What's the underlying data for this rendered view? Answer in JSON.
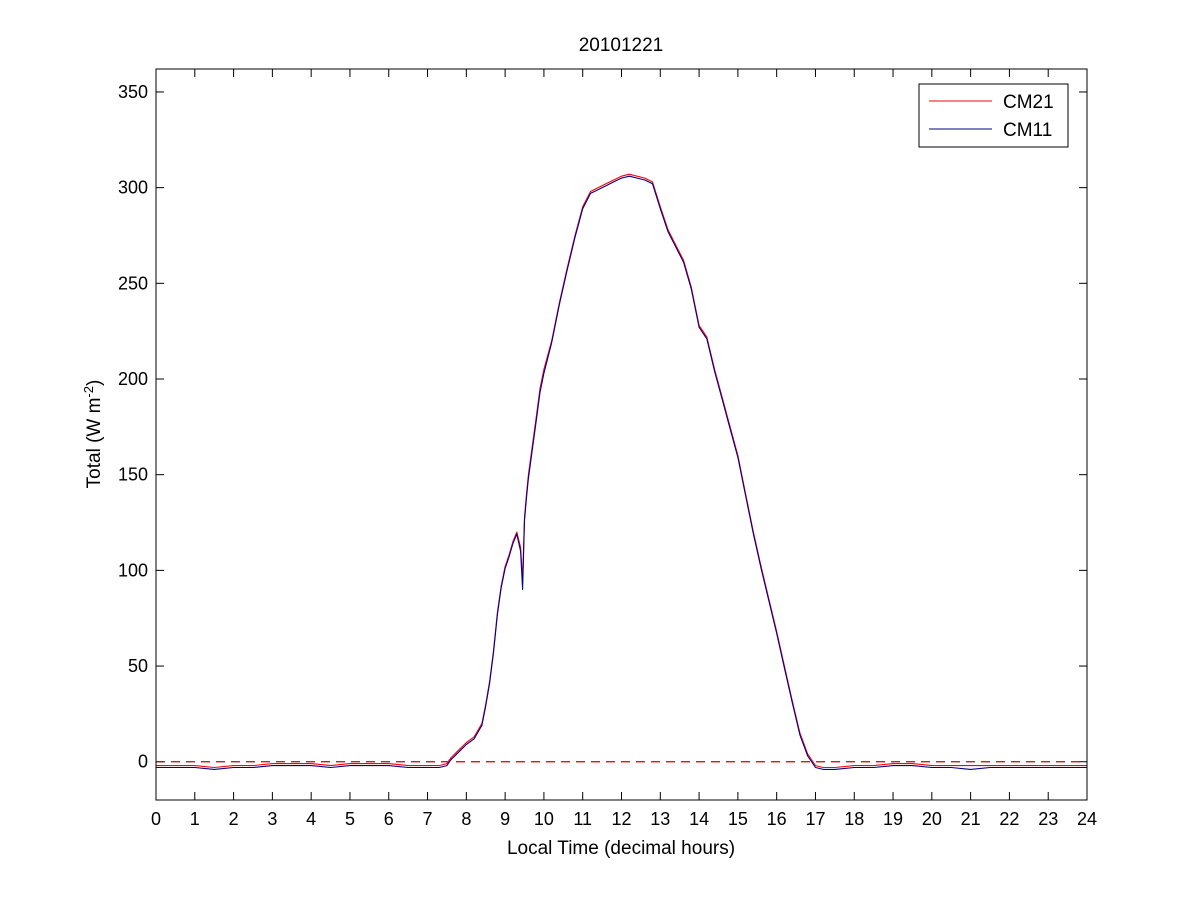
{
  "chart_data": {
    "type": "line",
    "title": "20101221",
    "xlabel": "Local Time (decimal hours)",
    "ylabel": {
      "base": "Total (W m",
      "sup": "-2",
      "close": ")"
    },
    "xlim": [
      0,
      24
    ],
    "ylim": [
      -20,
      362
    ],
    "xticks": [
      0,
      1,
      2,
      3,
      4,
      5,
      6,
      7,
      8,
      9,
      10,
      11,
      12,
      13,
      14,
      15,
      16,
      17,
      18,
      19,
      20,
      21,
      22,
      23,
      24
    ],
    "yticks": [
      0,
      50,
      100,
      150,
      200,
      250,
      300,
      350
    ],
    "grid": false,
    "legend_position": "top-right",
    "reference_line": {
      "y": 0,
      "style": "dashed",
      "color": "#cc0000"
    },
    "series": [
      {
        "name": "CM21",
        "color": "#ff0000",
        "x": [
          0,
          0.5,
          1,
          1.5,
          2,
          2.5,
          3,
          3.5,
          4,
          4.5,
          5,
          5.5,
          6,
          6.5,
          7,
          7.3,
          7.5,
          7.6,
          7.8,
          8,
          8.2,
          8.4,
          8.5,
          8.6,
          8.7,
          8.8,
          8.9,
          9,
          9.1,
          9.2,
          9.3,
          9.4,
          9.45,
          9.5,
          9.55,
          9.6,
          9.7,
          9.8,
          9.9,
          10,
          10.2,
          10.4,
          10.6,
          10.8,
          11,
          11.2,
          11.4,
          11.6,
          11.8,
          12,
          12.2,
          12.4,
          12.6,
          12.8,
          13,
          13.2,
          13.4,
          13.6,
          13.8,
          14,
          14.2,
          14.4,
          14.6,
          14.8,
          15,
          15.2,
          15.4,
          15.6,
          15.8,
          16,
          16.2,
          16.4,
          16.6,
          16.8,
          17,
          17.2,
          17.5,
          18,
          18.5,
          19,
          19.5,
          20,
          20.5,
          21,
          21.5,
          22,
          22.5,
          23,
          23.5,
          24
        ],
        "values": [
          -2,
          -2,
          -2,
          -3,
          -2,
          -2,
          -1,
          -1,
          -1,
          -2,
          -1,
          -1,
          -1,
          -2,
          -2,
          -2,
          -1,
          2,
          6,
          10,
          13,
          20,
          30,
          42,
          58,
          78,
          92,
          102,
          108,
          115,
          120,
          112,
          95,
          128,
          140,
          150,
          165,
          180,
          195,
          205,
          220,
          240,
          258,
          275,
          290,
          298,
          300,
          302,
          304,
          306,
          307,
          306,
          305,
          303,
          290,
          278,
          270,
          262,
          248,
          228,
          222,
          205,
          190,
          175,
          160,
          140,
          120,
          102,
          85,
          68,
          50,
          32,
          15,
          4,
          -2,
          -3,
          -3,
          -2,
          -2,
          -1,
          -1,
          -2,
          -2,
          -2,
          -2,
          -2,
          -2,
          -2,
          -2,
          -2
        ]
      },
      {
        "name": "CM11",
        "color": "#00008b",
        "x": [
          0,
          0.5,
          1,
          1.5,
          2,
          2.5,
          3,
          3.5,
          4,
          4.5,
          5,
          5.5,
          6,
          6.5,
          7,
          7.3,
          7.5,
          7.6,
          7.8,
          8,
          8.2,
          8.4,
          8.5,
          8.6,
          8.7,
          8.8,
          8.9,
          9,
          9.1,
          9.2,
          9.3,
          9.4,
          9.45,
          9.5,
          9.55,
          9.6,
          9.7,
          9.8,
          9.9,
          10,
          10.2,
          10.4,
          10.6,
          10.8,
          11,
          11.2,
          11.4,
          11.6,
          11.8,
          12,
          12.2,
          12.4,
          12.6,
          12.8,
          13,
          13.2,
          13.4,
          13.6,
          13.8,
          14,
          14.2,
          14.4,
          14.6,
          14.8,
          15,
          15.2,
          15.4,
          15.6,
          15.8,
          16,
          16.2,
          16.4,
          16.6,
          16.8,
          17,
          17.2,
          17.5,
          18,
          18.5,
          19,
          19.5,
          20,
          20.5,
          21,
          21.5,
          22,
          22.5,
          23,
          23.5,
          24
        ],
        "values": [
          -3,
          -3,
          -3,
          -4,
          -3,
          -3,
          -2,
          -2,
          -2,
          -3,
          -2,
          -2,
          -2,
          -3,
          -3,
          -3,
          -2,
          1,
          5,
          9,
          12,
          19,
          29,
          41,
          57,
          77,
          91,
          101,
          107,
          114,
          119,
          110,
          90,
          126,
          138,
          148,
          163,
          178,
          193,
          203,
          219,
          239,
          257,
          274,
          289,
          297,
          299,
          301,
          303,
          305,
          306,
          305,
          304,
          302,
          289,
          277,
          269,
          261,
          247,
          227,
          221,
          204,
          189,
          174,
          159,
          139,
          119,
          101,
          84,
          67,
          49,
          31,
          14,
          3,
          -3,
          -4,
          -4,
          -3,
          -3,
          -2,
          -2,
          -3,
          -3,
          -4,
          -3,
          -3,
          -3,
          -3,
          -3,
          -3
        ]
      }
    ]
  }
}
